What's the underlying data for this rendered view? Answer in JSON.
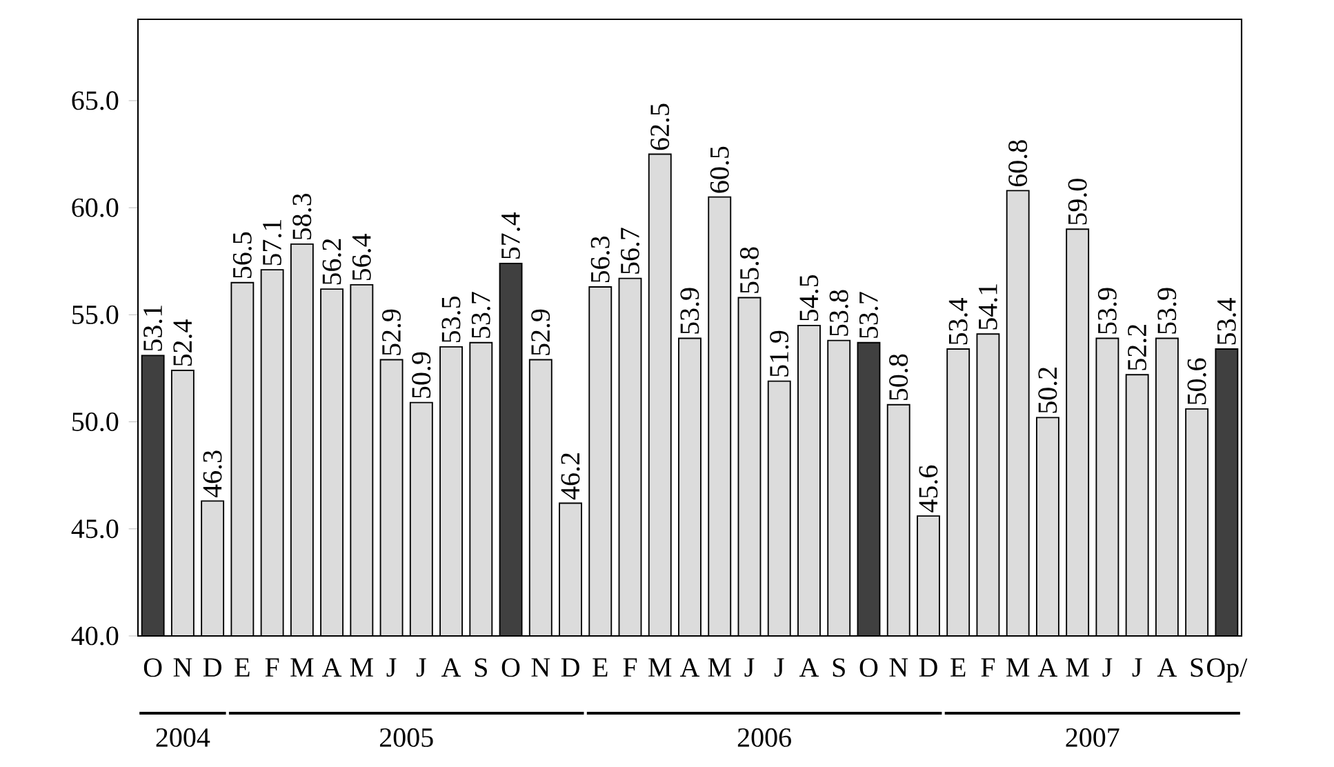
{
  "chart_data": {
    "type": "bar",
    "categories": [
      "O",
      "N",
      "D",
      "E",
      "F",
      "M",
      "A",
      "M",
      "J",
      "J",
      "A",
      "S",
      "O",
      "N",
      "D",
      "E",
      "F",
      "M",
      "A",
      "M",
      "J",
      "J",
      "A",
      "S",
      "O",
      "N",
      "D",
      "E",
      "F",
      "M",
      "A",
      "M",
      "J",
      "J",
      "A",
      "S",
      "Op/"
    ],
    "values": [
      53.1,
      52.4,
      46.3,
      56.5,
      57.1,
      58.3,
      56.2,
      56.4,
      52.9,
      50.9,
      53.5,
      53.7,
      57.4,
      52.9,
      46.2,
      56.3,
      56.7,
      62.5,
      53.9,
      60.5,
      55.8,
      51.9,
      54.5,
      53.8,
      53.7,
      50.8,
      45.6,
      53.4,
      54.1,
      60.8,
      50.2,
      59.0,
      53.9,
      52.2,
      53.9,
      50.6,
      53.4
    ],
    "value_labels": [
      "53.1",
      "52.4",
      "46.3",
      "56.5",
      "57.1",
      "58.3",
      "56.2",
      "56.4",
      "52.9",
      "50.9",
      "53.5",
      "53.7",
      "57.4",
      "52.9",
      "46.2",
      "56.3",
      "56.7",
      "62.5",
      "53.9",
      "60.5",
      "55.8",
      "51.9",
      "54.5",
      "53.8",
      "53.7",
      "50.8",
      "45.6",
      "53.4",
      "54.1",
      "60.8",
      "50.2",
      "59.0",
      "53.9",
      "52.2",
      "53.9",
      "50.6",
      "53.4"
    ],
    "colors": [
      "#404040",
      "#dcdcdc",
      "#dcdcdc",
      "#dcdcdc",
      "#dcdcdc",
      "#dcdcdc",
      "#dcdcdc",
      "#dcdcdc",
      "#dcdcdc",
      "#dcdcdc",
      "#dcdcdc",
      "#dcdcdc",
      "#404040",
      "#dcdcdc",
      "#dcdcdc",
      "#dcdcdc",
      "#dcdcdc",
      "#dcdcdc",
      "#dcdcdc",
      "#dcdcdc",
      "#dcdcdc",
      "#dcdcdc",
      "#dcdcdc",
      "#dcdcdc",
      "#404040",
      "#dcdcdc",
      "#dcdcdc",
      "#dcdcdc",
      "#dcdcdc",
      "#dcdcdc",
      "#dcdcdc",
      "#dcdcdc",
      "#dcdcdc",
      "#dcdcdc",
      "#dcdcdc",
      "#dcdcdc",
      "#404040"
    ],
    "ylim": [
      40,
      68.8
    ],
    "yticks": [
      {
        "value": 40,
        "label": "40.0"
      },
      {
        "value": 45,
        "label": "45.0"
      },
      {
        "value": 50,
        "label": "50.0"
      },
      {
        "value": 55,
        "label": "55.0"
      },
      {
        "value": 60,
        "label": "60.0"
      },
      {
        "value": 65,
        "label": "65.0"
      }
    ],
    "annotations": [
      "2004",
      "2005",
      "2006",
      "2007"
    ]
  }
}
